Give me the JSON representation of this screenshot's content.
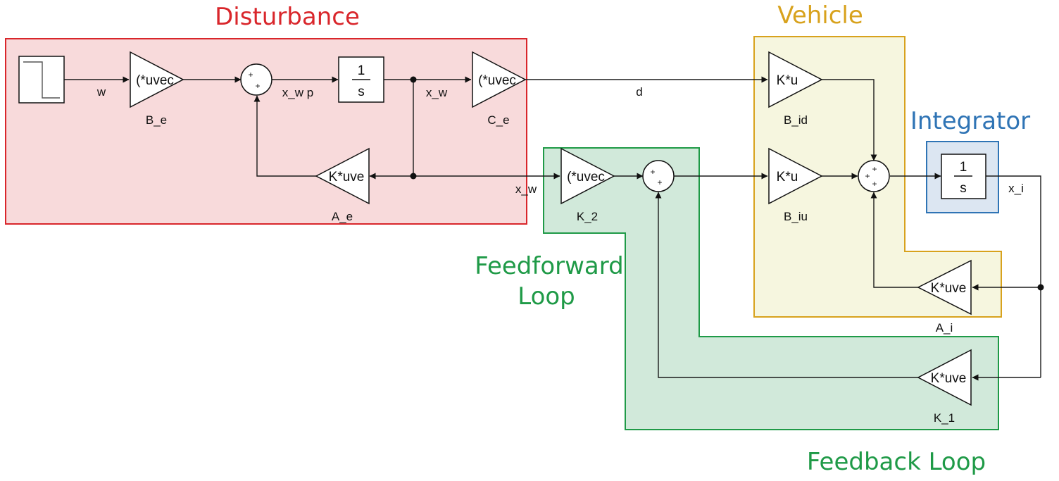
{
  "regions": {
    "disturbance": {
      "title": "Disturbance",
      "color": "#d9262b",
      "fill": "#f8dadb"
    },
    "vehicle": {
      "title": "Vehicle",
      "color": "#d8a21d",
      "fill": "#f6f6df"
    },
    "integrator": {
      "title": "Integrator",
      "color": "#2f74b5",
      "fill": "#dce6f2"
    },
    "feedforward": {
      "title_line1": "Feedforward",
      "title_line2": "Loop",
      "color": "#1f9a47",
      "fill": "#d1e9da"
    },
    "feedback": {
      "title": "Feedback Loop",
      "color": "#1f9a47"
    }
  },
  "blocks": {
    "integrator_1": {
      "num": "1",
      "den": "s"
    },
    "integrator_2": {
      "num": "1",
      "den": "s"
    },
    "B_e": {
      "text": "(*uvec",
      "name": "B_e"
    },
    "C_e": {
      "text": "(*uvec",
      "name": "C_e"
    },
    "A_e": {
      "text": "K*uve",
      "name": "A_e"
    },
    "K_2": {
      "text": "(*uvec",
      "name": "K_2"
    },
    "B_id": {
      "text": "K*u",
      "name": "B_id"
    },
    "B_iu": {
      "text": "K*u",
      "name": "B_iu"
    },
    "A_i": {
      "text": "K*uve",
      "name": "A_i"
    },
    "K_1": {
      "text": "K*uve",
      "name": "K_1"
    }
  },
  "signals": {
    "w": "w",
    "x_w_p": "x_w p",
    "x_w_top": "x_w",
    "x_w_mid": "x_w",
    "d": "d",
    "x_i": "x_i"
  },
  "sum_signs": "+"
}
